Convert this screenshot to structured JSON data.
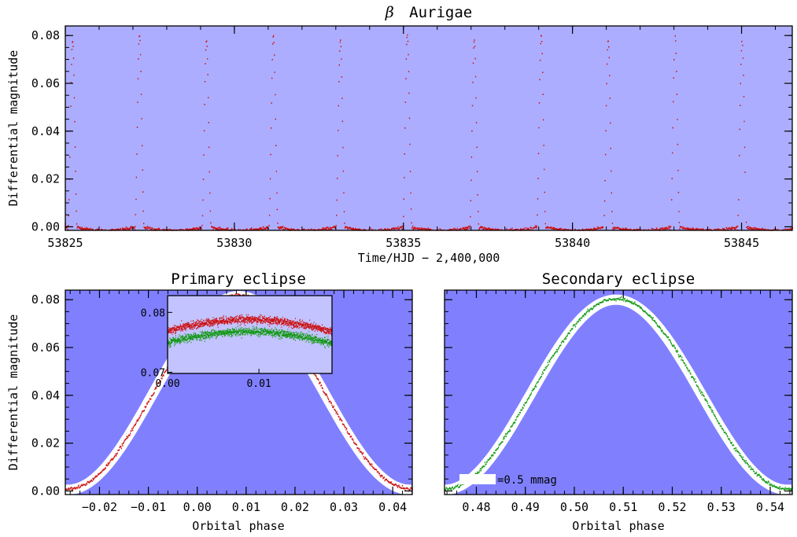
{
  "colors": {
    "top_panel_bg": "#adadff",
    "bottom_panel_bg": "#8080ff",
    "primary_points": "#cc1111",
    "secondary_points": "#119911",
    "envelope": "#ffffff",
    "zoom_box": "#c3c3ff",
    "axis": "#000000"
  },
  "chart_data": [
    {
      "id": "light_curve",
      "type": "scatter",
      "title_symbol": "β",
      "title_text": "Aurigae",
      "xlabel": "Time/HJD − 2,400,000",
      "ylabel": "Differential magnitude",
      "xlim": [
        53825,
        53846.5
      ],
      "ylim": [
        0.084,
        -0.0015
      ],
      "y_inverted": true,
      "xticks": [
        "53825",
        "53830",
        "53835",
        "53840",
        "53845"
      ],
      "yticks": [
        "0.00",
        "0.02",
        "0.04",
        "0.06",
        "0.08"
      ],
      "period_days": 3.96,
      "first_primary_minimum": 53827.18,
      "first_secondary_minimum": 53825.2,
      "eclipse_depth_primary": 0.081,
      "eclipse_depth_secondary": 0.079,
      "eclipse_half_width_days": 0.14,
      "max_brightness_mag": -0.001
    },
    {
      "id": "primary_eclipse",
      "type": "scatter",
      "title": "Primary eclipse",
      "xlabel": "Orbital phase",
      "ylabel": "Differential magnitude",
      "xlim": [
        -0.027,
        0.044
      ],
      "ylim": [
        0.084,
        -0.0015
      ],
      "y_inverted": true,
      "xticks": [
        "−0.02",
        "−0.01",
        "0.00",
        "0.01",
        "0.02",
        "0.03",
        "0.04"
      ],
      "yticks": [
        "0.00",
        "0.02",
        "0.04",
        "0.06",
        "0.08"
      ],
      "center_phase": 0.0085,
      "depth": 0.081,
      "half_width_phase": 0.035,
      "inset": {
        "xlim": [
          0.0,
          0.018
        ],
        "ylim": [
          0.0828,
          0.0698
        ],
        "xticks": [
          "0.00",
          "0.01"
        ],
        "yticks": [
          "0.07",
          "0.08"
        ],
        "series": [
          {
            "color": "secondary",
            "min_mag": 0.0768
          },
          {
            "color": "primary",
            "min_mag": 0.0788
          }
        ]
      },
      "zoom_region": {
        "x": [
          0.0,
          0.018
        ],
        "y": [
          0.07,
          0.082
        ]
      }
    },
    {
      "id": "secondary_eclipse",
      "type": "scatter",
      "title": "Secondary eclipse",
      "xlabel": "Orbital phase",
      "ylabel": "",
      "xlim": [
        0.4735,
        0.5445
      ],
      "ylim": [
        0.084,
        -0.0015
      ],
      "y_inverted": true,
      "xticks": [
        "0.48",
        "0.49",
        "0.50",
        "0.51",
        "0.52",
        "0.53",
        "0.54"
      ],
      "center_phase": 0.5085,
      "depth": 0.0795,
      "half_width_phase": 0.035,
      "legend_text": "=0.5 mmag",
      "zoom_region": {
        "x": [
          0.5,
          0.518
        ],
        "y": [
          0.07,
          0.082
        ]
      }
    }
  ]
}
